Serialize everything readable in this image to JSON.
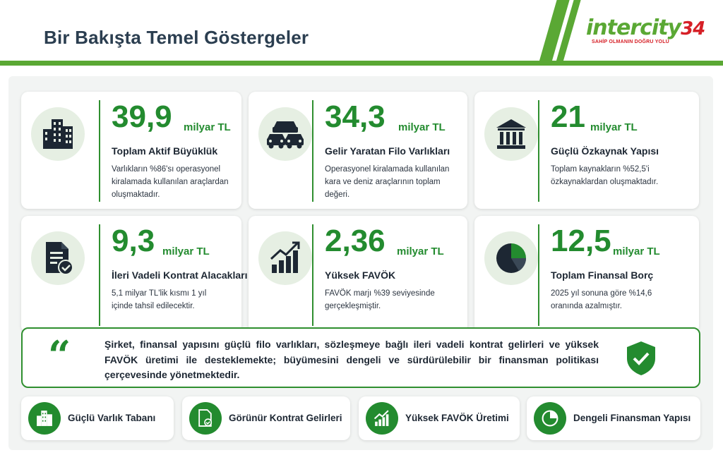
{
  "header": {
    "title": "Bir Bakışta Temel Göstergeler",
    "logo_main": "intercity",
    "logo_number": "34",
    "logo_tagline": "SAHİP OLMANIN DOĞRU YOLU",
    "accent": "#5aa834"
  },
  "cards": [
    {
      "value": "39,9",
      "unit": "milyar TL",
      "title": "Toplam Aktif Büyüklük",
      "desc": "Varlıkların %86'sı operasyonel kiralamada kullanılan araçlardan oluşmaktadır.",
      "icon": "building-icon"
    },
    {
      "value": "34,3",
      "unit": "milyar TL",
      "title": "Gelir Yaratan Filo Varlıkları",
      "desc": "Operasyonel kiralamada kullanılan kara ve deniz araçlarının toplam değeri.",
      "icon": "cars-icon"
    },
    {
      "value": "21",
      "unit": "milyar TL",
      "title": "Güçlü Özkaynak Yapısı",
      "desc": "Toplam kaynakların %52,5'i özkaynaklardan oluşmaktadır.",
      "icon": "bank-icon"
    },
    {
      "value": "9,3",
      "unit": "milyar TL",
      "title": "İleri Vadeli Kontrat Alacakları",
      "desc": "5,1 milyar TL'lik kısmı 1 yıl içinde tahsil edilecektir.",
      "icon": "contract-check-icon"
    },
    {
      "value": "2,36",
      "unit": "milyar TL",
      "title": "Yüksek FAVÖK",
      "desc": "FAVÖK marjı %39 seviyesinde gerçekleşmiştir.",
      "icon": "growth-chart-icon"
    },
    {
      "value": "12,5",
      "unit": "milyar TL",
      "title": "Toplam Finansal Borç",
      "desc": "2025 yıl sonuna göre %14,6 oranında azalmıştır.",
      "icon": "pie-chart-icon"
    }
  ],
  "quote": {
    "mark": "“",
    "text": "Şirket, finansal yapısını güçlü filo varlıkları, sözleşmeye bağlı ileri vadeli kontrat gelirleri ve yüksek FAVÖK üretimi ile desteklemekte; büyümesini dengeli ve sürdürülebilir bir finansman politikası çerçevesinde yönetmektedir.",
    "icon": "shield-check-icon"
  },
  "pills": [
    {
      "label": "Güçlü Varlık Tabanı",
      "icon": "building-icon"
    },
    {
      "label": "Görünür Kontrat Gelirleri",
      "icon": "contract-check-icon"
    },
    {
      "label": "Yüksek FAVÖK Üretimi",
      "icon": "growth-chart-icon"
    },
    {
      "label": "Dengeli Finansman Yapısı",
      "icon": "pie-chart-icon"
    }
  ],
  "colors": {
    "green": "#238b2f",
    "navy": "#1d2733",
    "soft_green": "#e6efe3"
  }
}
